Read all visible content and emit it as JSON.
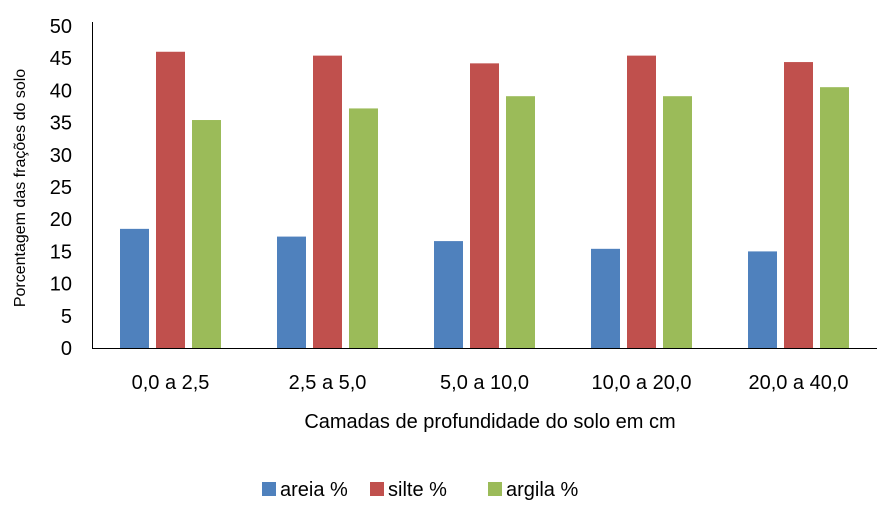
{
  "chart_data": {
    "type": "bar",
    "title": "",
    "xlabel": "Camadas de profundidade do solo em cm",
    "ylabel": "Porcentagem das frações do solo",
    "categories": [
      "0,0 a 2,5",
      "2,5 a 5,0",
      "5,0 a 10,0",
      "10,0 a 20,0",
      "20,0 a 40,0"
    ],
    "ylim": [
      0,
      50
    ],
    "yticks": [
      0,
      5,
      10,
      15,
      20,
      25,
      30,
      35,
      40,
      45,
      50
    ],
    "grid": false,
    "legend_position": "bottom",
    "series": [
      {
        "name": "areia %",
        "color": "#4f81bd",
        "values": [
          18.5,
          17.3,
          16.6,
          15.4,
          15.0
        ]
      },
      {
        "name": "silte %",
        "color": "#c0504d",
        "values": [
          46.0,
          45.4,
          44.2,
          45.4,
          44.4
        ]
      },
      {
        "name": "argila %",
        "color": "#9bbb59",
        "values": [
          35.4,
          37.2,
          39.1,
          39.1,
          40.5
        ]
      }
    ]
  }
}
